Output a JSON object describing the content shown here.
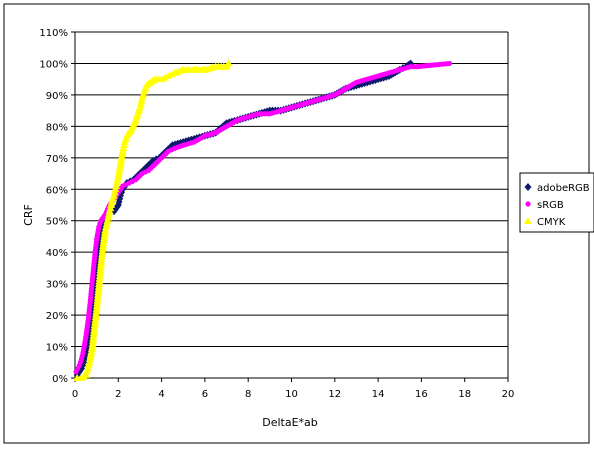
{
  "chart_data": {
    "type": "scatter",
    "title": "",
    "xlabel": "DeltaE*ab",
    "ylabel": "CRF",
    "xlim": [
      0,
      20
    ],
    "ylim": [
      0,
      110
    ],
    "x_ticks": [
      "0",
      "2",
      "4",
      "6",
      "8",
      "10",
      "12",
      "14",
      "16",
      "18",
      "20"
    ],
    "y_ticks": [
      "0%",
      "10%",
      "20%",
      "30%",
      "40%",
      "50%",
      "60%",
      "70%",
      "80%",
      "90%",
      "100%",
      "110%"
    ],
    "grid": "horizontal",
    "legend_position": "right",
    "series": [
      {
        "name": "adobeRGB",
        "marker": "diamond",
        "color": "#0d1a6e",
        "points": [
          [
            0.1,
            1
          ],
          [
            0.2,
            2
          ],
          [
            0.3,
            3
          ],
          [
            0.4,
            5
          ],
          [
            0.5,
            8
          ],
          [
            0.6,
            12
          ],
          [
            0.7,
            17
          ],
          [
            0.8,
            23
          ],
          [
            0.9,
            30
          ],
          [
            1.0,
            38
          ],
          [
            1.1,
            44
          ],
          [
            1.2,
            48
          ],
          [
            1.4,
            51
          ],
          [
            1.6,
            53
          ],
          [
            1.8,
            53
          ],
          [
            2.0,
            55
          ],
          [
            2.1,
            58
          ],
          [
            2.2,
            60
          ],
          [
            2.4,
            62
          ],
          [
            2.7,
            63
          ],
          [
            3.0,
            65
          ],
          [
            3.3,
            67
          ],
          [
            3.6,
            69
          ],
          [
            3.9,
            70
          ],
          [
            4.2,
            72
          ],
          [
            4.5,
            74
          ],
          [
            5.0,
            75
          ],
          [
            5.5,
            76
          ],
          [
            6.0,
            77
          ],
          [
            6.5,
            78
          ],
          [
            7.0,
            81
          ],
          [
            7.5,
            82
          ],
          [
            8.0,
            83
          ],
          [
            8.5,
            84
          ],
          [
            9.0,
            85
          ],
          [
            9.5,
            85
          ],
          [
            10.0,
            86
          ],
          [
            10.5,
            87
          ],
          [
            11.0,
            88
          ],
          [
            11.5,
            89
          ],
          [
            12.0,
            90
          ],
          [
            12.5,
            92
          ],
          [
            13.0,
            93
          ],
          [
            13.5,
            94
          ],
          [
            14.0,
            95
          ],
          [
            14.5,
            96
          ],
          [
            15.0,
            98
          ],
          [
            15.3,
            99
          ],
          [
            15.5,
            100
          ]
        ]
      },
      {
        "name": "sRGB",
        "marker": "dot",
        "color": "#ff00ff",
        "points": [
          [
            0.05,
            2
          ],
          [
            0.2,
            4
          ],
          [
            0.3,
            6
          ],
          [
            0.4,
            9
          ],
          [
            0.5,
            13
          ],
          [
            0.6,
            18
          ],
          [
            0.7,
            24
          ],
          [
            0.8,
            31
          ],
          [
            0.9,
            38
          ],
          [
            1.0,
            44
          ],
          [
            1.1,
            48
          ],
          [
            1.2,
            50
          ],
          [
            1.4,
            52
          ],
          [
            1.6,
            55
          ],
          [
            1.8,
            57
          ],
          [
            2.0,
            59
          ],
          [
            2.2,
            61
          ],
          [
            2.5,
            62
          ],
          [
            2.8,
            63
          ],
          [
            3.1,
            65
          ],
          [
            3.4,
            66
          ],
          [
            3.7,
            68
          ],
          [
            4.0,
            70
          ],
          [
            4.3,
            72
          ],
          [
            4.6,
            73
          ],
          [
            5.0,
            74
          ],
          [
            5.5,
            75
          ],
          [
            6.0,
            77
          ],
          [
            6.5,
            78
          ],
          [
            7.0,
            80
          ],
          [
            7.5,
            82
          ],
          [
            8.0,
            83
          ],
          [
            8.5,
            84
          ],
          [
            9.0,
            84
          ],
          [
            9.5,
            85
          ],
          [
            10.0,
            86
          ],
          [
            10.5,
            87
          ],
          [
            11.0,
            88
          ],
          [
            11.5,
            89
          ],
          [
            12.0,
            90
          ],
          [
            12.5,
            92
          ],
          [
            13.0,
            94
          ],
          [
            13.5,
            95
          ],
          [
            14.0,
            96
          ],
          [
            14.5,
            97
          ],
          [
            15.0,
            98
          ],
          [
            15.5,
            99
          ],
          [
            15.8,
            99
          ],
          [
            17.3,
            100
          ]
        ]
      },
      {
        "name": "CMYK",
        "marker": "triangle",
        "color": "#ffff00",
        "points": [
          [
            0.1,
            0
          ],
          [
            0.3,
            0
          ],
          [
            0.5,
            1
          ],
          [
            0.6,
            3
          ],
          [
            0.7,
            6
          ],
          [
            0.8,
            10
          ],
          [
            0.9,
            16
          ],
          [
            1.0,
            22
          ],
          [
            1.1,
            29
          ],
          [
            1.2,
            36
          ],
          [
            1.3,
            42
          ],
          [
            1.4,
            47
          ],
          [
            1.5,
            50
          ],
          [
            1.6,
            53
          ],
          [
            1.7,
            56
          ],
          [
            1.8,
            58
          ],
          [
            1.9,
            61
          ],
          [
            2.0,
            64
          ],
          [
            2.1,
            68
          ],
          [
            2.2,
            72
          ],
          [
            2.3,
            75
          ],
          [
            2.4,
            77
          ],
          [
            2.6,
            79
          ],
          [
            2.8,
            82
          ],
          [
            3.0,
            86
          ],
          [
            3.1,
            89
          ],
          [
            3.2,
            91
          ],
          [
            3.3,
            93
          ],
          [
            3.5,
            94
          ],
          [
            3.7,
            95
          ],
          [
            4.0,
            95
          ],
          [
            4.3,
            96
          ],
          [
            4.6,
            97
          ],
          [
            5.0,
            98
          ],
          [
            5.4,
            98
          ],
          [
            6.0,
            98
          ],
          [
            6.5,
            99
          ],
          [
            7.0,
            99
          ],
          [
            7.1,
            100
          ]
        ]
      }
    ]
  },
  "ui": {
    "colors": {
      "axis": "#000000",
      "grid": "#000000",
      "frame": "#000000",
      "background": "#ffffff"
    }
  }
}
